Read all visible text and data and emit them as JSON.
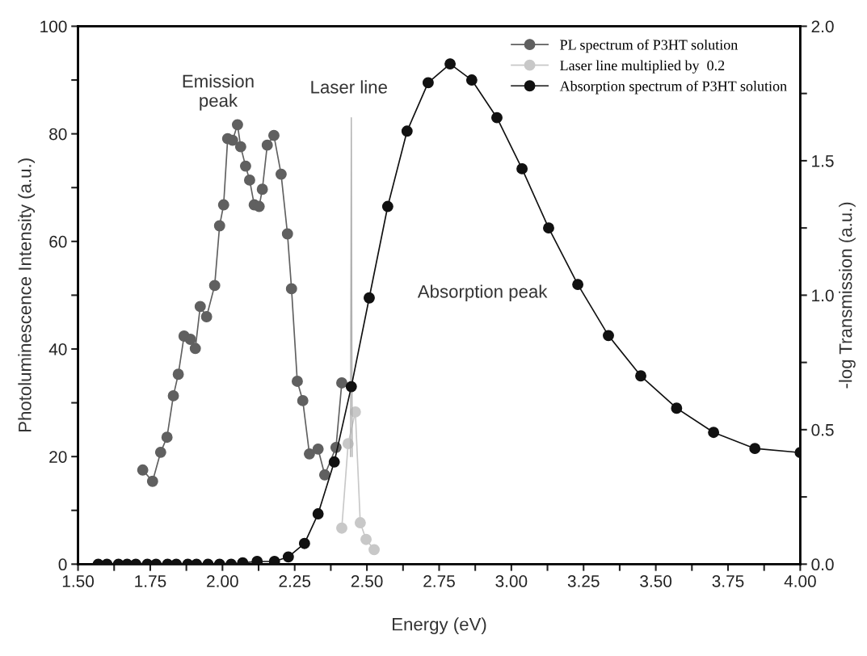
{
  "chart_data": {
    "type": "line",
    "xlabel": "Energy (eV)",
    "ylabel": "Photoluminescence Intensity (a.u.)",
    "y2label": "-log Transmission (a.u.)",
    "xlim": [
      1.5,
      4.0
    ],
    "ylim": [
      0,
      100
    ],
    "y2lim": [
      0,
      2.0
    ],
    "xticks": [
      {
        "value": 1.5,
        "label": "1.50"
      },
      {
        "value": 1.625,
        "label": null
      },
      {
        "value": 1.75,
        "label": "1.75"
      },
      {
        "value": 1.875,
        "label": null
      },
      {
        "value": 2.0,
        "label": "2.00"
      },
      {
        "value": 2.125,
        "label": null
      },
      {
        "value": 2.25,
        "label": "2.25"
      },
      {
        "value": 2.375,
        "label": null
      },
      {
        "value": 2.5,
        "label": "2.50"
      },
      {
        "value": 2.625,
        "label": null
      },
      {
        "value": 2.75,
        "label": "2.75"
      },
      {
        "value": 2.875,
        "label": null
      },
      {
        "value": 3.0,
        "label": "3.00"
      },
      {
        "value": 3.125,
        "label": null
      },
      {
        "value": 3.25,
        "label": "3.25"
      },
      {
        "value": 3.375,
        "label": null
      },
      {
        "value": 3.5,
        "label": "3.50"
      },
      {
        "value": 3.625,
        "label": null
      },
      {
        "value": 3.75,
        "label": "3.75"
      },
      {
        "value": 3.875,
        "label": null
      },
      {
        "value": 4.0,
        "label": "4.00"
      }
    ],
    "yticks": [
      0,
      {
        "value": 10,
        "label": null
      },
      20,
      {
        "value": 30,
        "label": null
      },
      40,
      {
        "value": 50,
        "label": null
      },
      60,
      {
        "value": 70,
        "label": null
      },
      80,
      {
        "value": 90,
        "label": null
      },
      100
    ],
    "y2ticks": [
      {
        "value": 0,
        "label": "0.0"
      },
      {
        "value": 0.25,
        "label": null
      },
      {
        "value": 0.5,
        "label": "0.5"
      },
      {
        "value": 0.75,
        "label": null
      },
      {
        "value": 1.0,
        "label": "1.0"
      },
      {
        "value": 1.25,
        "label": null
      },
      {
        "value": 1.5,
        "label": "1.5"
      },
      {
        "value": 1.75,
        "label": null
      },
      {
        "value": 2.0,
        "label": "2.0"
      }
    ],
    "legend": "top right",
    "grid": false,
    "series": [
      {
        "name": "PL spectrum of P3HT solution",
        "color": "#606060",
        "marker": "circle",
        "x": [
          1.724,
          1.758,
          1.786,
          1.808,
          1.83,
          1.847,
          1.867,
          1.889,
          1.906,
          1.923,
          1.945,
          1.973,
          1.99,
          2.004,
          2.018,
          2.035,
          2.052,
          2.063,
          2.08,
          2.094,
          2.11,
          2.127,
          2.138,
          2.155,
          2.178,
          2.203,
          2.225,
          2.239,
          2.259,
          2.278,
          2.301,
          2.331,
          2.354,
          2.393,
          2.413
        ],
        "values": [
          17.5,
          15.4,
          20.8,
          23.6,
          31.3,
          35.3,
          42.4,
          41.8,
          40.1,
          47.9,
          46.0,
          51.8,
          62.9,
          66.8,
          79.1,
          78.8,
          81.7,
          77.6,
          74.0,
          71.4,
          66.8,
          66.5,
          69.7,
          77.9,
          79.7,
          72.5,
          61.4,
          51.2,
          34.0,
          30.4,
          20.5,
          21.4,
          16.6,
          21.7,
          33.7
        ]
      },
      {
        "name": "Laser line multiplied by  0.2",
        "color": "#c8c8c8",
        "marker": "circle",
        "x": [
          2.413,
          2.435,
          2.46,
          2.477,
          2.497,
          2.525
        ],
        "values": [
          6.7,
          22.4,
          28.3,
          7.7,
          4.6,
          2.7
        ]
      },
      {
        "color": "#b0b0b0",
        "marker": "none",
        "x": [
          2.443,
          2.446,
          2.449
        ],
        "values": [
          20,
          83,
          20
        ]
      },
      {
        "name": "Absorption spectrum of P3HT solution",
        "color": "#111111",
        "marker": "circle",
        "axis": "y2",
        "x": [
          1.57,
          1.6,
          1.64,
          1.67,
          1.7,
          1.74,
          1.77,
          1.81,
          1.84,
          1.88,
          1.91,
          1.95,
          1.99,
          2.03,
          2.07,
          2.12,
          2.18,
          2.228,
          2.284,
          2.331,
          2.387,
          2.446,
          2.508,
          2.572,
          2.639,
          2.712,
          2.788,
          2.863,
          2.95,
          3.037,
          3.129,
          3.23,
          3.336,
          3.448,
          3.572,
          3.7,
          3.843,
          4.0
        ],
        "values": [
          0,
          0,
          0,
          0,
          0,
          0,
          0,
          0,
          0,
          0,
          0,
          0,
          0,
          0,
          0.005,
          0.01,
          0.01,
          0.027,
          0.077,
          0.187,
          0.38,
          0.66,
          0.99,
          1.33,
          1.61,
          1.79,
          1.86,
          1.8,
          1.66,
          1.47,
          1.25,
          1.04,
          0.85,
          0.7,
          0.58,
          0.49,
          0.43,
          0.415
        ]
      }
    ],
    "annotations": [
      "Emission\npeak",
      "Laser line",
      "Absorption peak"
    ]
  }
}
